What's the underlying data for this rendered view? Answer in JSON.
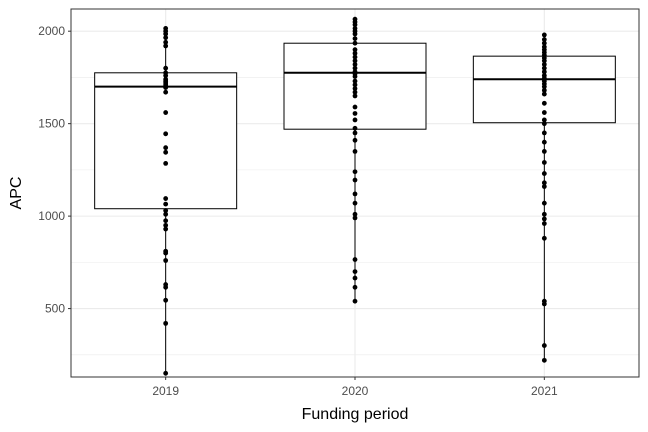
{
  "chart_data": {
    "type": "boxplot",
    "xlabel": "Funding period",
    "ylabel": "APC",
    "ylim": [
      130,
      2120
    ],
    "y_ticks": [
      500,
      1000,
      1500,
      2000
    ],
    "grid": true,
    "theme": "bw",
    "categories": [
      "2019",
      "2020",
      "2021"
    ],
    "boxes": [
      {
        "category": "2019",
        "whisker_low": 150,
        "q1": 1040,
        "median": 1700,
        "q3": 1775,
        "whisker_high": 2015
      },
      {
        "category": "2020",
        "whisker_low": 540,
        "q1": 1470,
        "median": 1775,
        "q3": 1935,
        "whisker_high": 2065
      },
      {
        "category": "2021",
        "whisker_low": 220,
        "q1": 1505,
        "median": 1740,
        "q3": 1865,
        "whisker_high": 1980
      }
    ],
    "points": [
      {
        "category": "2019",
        "values": [
          2015,
          2000,
          1985,
          1965,
          1940,
          1920,
          1800,
          1775,
          1760,
          1740,
          1730,
          1720,
          1710,
          1700,
          1695,
          1670,
          1560,
          1445,
          1370,
          1345,
          1285,
          1095,
          1065,
          1030,
          1010,
          975,
          950,
          930,
          810,
          800,
          760,
          630,
          615,
          545,
          420,
          150
        ]
      },
      {
        "category": "2020",
        "values": [
          2065,
          2050,
          2035,
          2015,
          2000,
          1985,
          1960,
          1935,
          1900,
          1880,
          1860,
          1840,
          1820,
          1800,
          1780,
          1770,
          1755,
          1730,
          1710,
          1690,
          1670,
          1650,
          1590,
          1555,
          1520,
          1475,
          1450,
          1410,
          1350,
          1240,
          1195,
          1120,
          1070,
          1010,
          990,
          765,
          700,
          665,
          615,
          540
        ]
      },
      {
        "category": "2021",
        "values": [
          1980,
          1955,
          1935,
          1915,
          1900,
          1885,
          1870,
          1855,
          1840,
          1820,
          1800,
          1780,
          1760,
          1745,
          1730,
          1715,
          1700,
          1680,
          1660,
          1610,
          1560,
          1520,
          1500,
          1450,
          1400,
          1350,
          1290,
          1230,
          1180,
          1160,
          1070,
          1010,
          985,
          960,
          880,
          540,
          525,
          300,
          220
        ]
      }
    ],
    "colors": {
      "box": "#000000",
      "point": "#000000",
      "grid": "#ebebeb",
      "panel_border": "#333333",
      "background": "#ffffff"
    }
  }
}
